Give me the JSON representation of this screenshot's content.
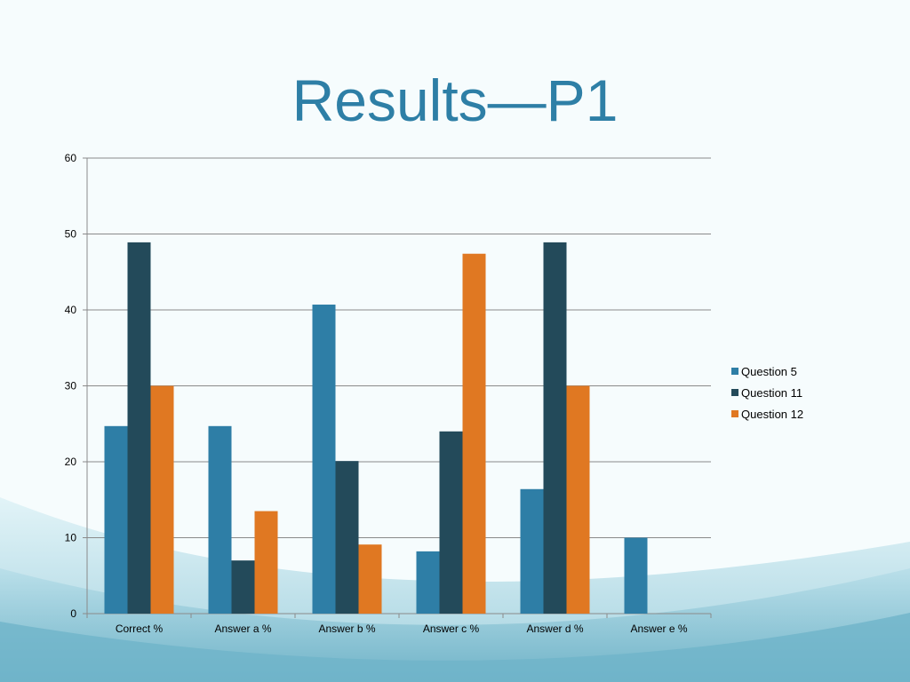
{
  "slide": {
    "title": "Results—P1",
    "background_colors": {
      "base": "#f6fcfd",
      "wave_light": "#d6eef4",
      "wave_mid": "#a9d6e3",
      "wave_dark": "#6fb4c9"
    }
  },
  "chart_data": {
    "type": "bar",
    "categories": [
      "Correct %",
      "Answer a %",
      "Answer b %",
      "Answer c %",
      "Answer d %",
      "Answer e %"
    ],
    "series": [
      {
        "name": "Question 5",
        "color": "#2e7ea6",
        "values": [
          24.7,
          24.7,
          40.7,
          8.2,
          16.4,
          10
        ]
      },
      {
        "name": "Question 11",
        "color": "#234a5a",
        "values": [
          48.9,
          7,
          20.1,
          24,
          48.9,
          0
        ]
      },
      {
        "name": "Question 12",
        "color": "#e07822",
        "values": [
          30,
          13.5,
          9.1,
          47.4,
          30,
          0
        ]
      }
    ],
    "ylim": [
      0,
      60
    ],
    "yticks": [
      0,
      10,
      20,
      30,
      40,
      50,
      60
    ],
    "grid": true,
    "legend": "right",
    "xlabel": "",
    "ylabel": ""
  }
}
